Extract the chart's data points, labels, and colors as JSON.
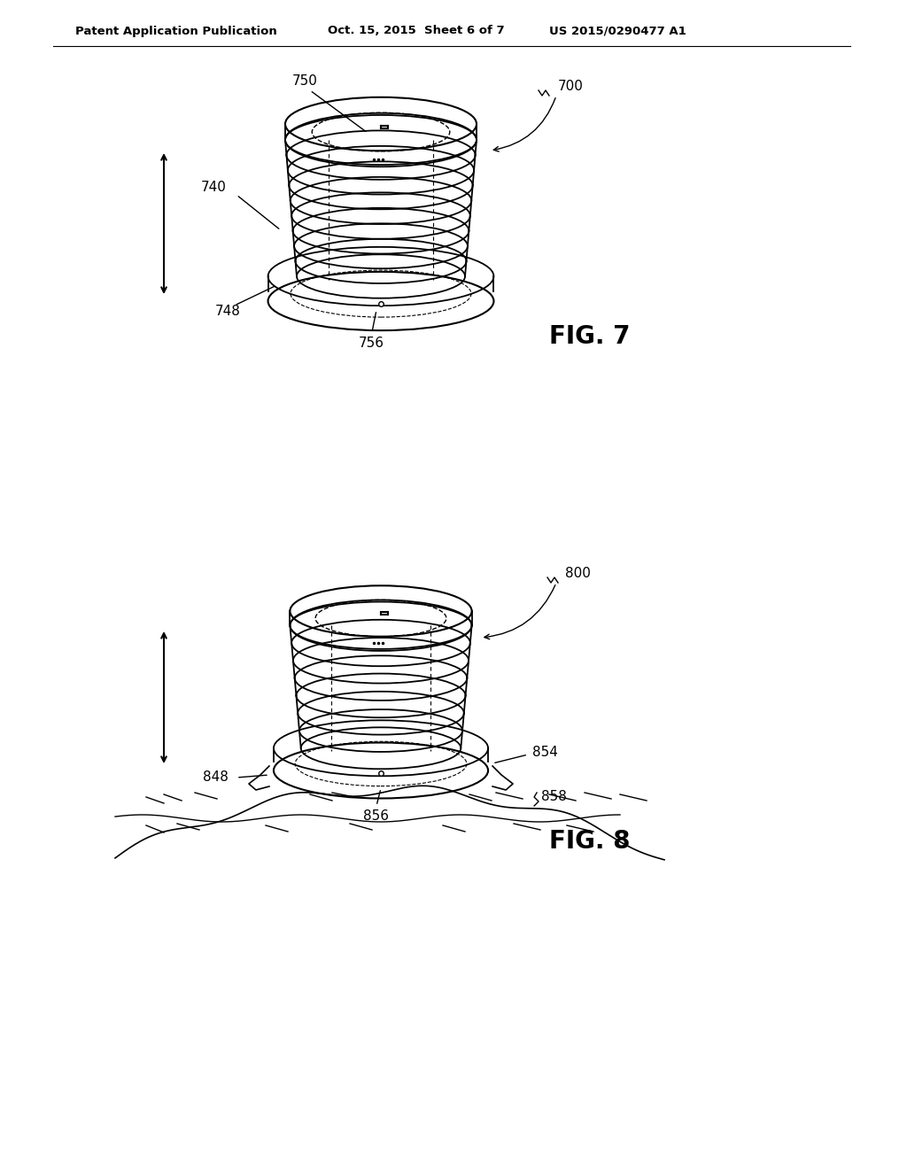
{
  "bg_color": "#ffffff",
  "line_color": "#000000",
  "header_left": "Patent Application Publication",
  "header_mid": "Oct. 15, 2015  Sheet 6 of 7",
  "header_right": "US 2015/0290477 A1",
  "fig7_label": "FIG. 7",
  "fig8_label": "FIG. 8",
  "fig7_ref700": "700",
  "fig7_ref750": "750",
  "fig7_ref740": "740",
  "fig7_ref748": "748",
  "fig7_ref756": "756",
  "fig8_ref800": "800",
  "fig8_ref854": "854",
  "fig8_ref848": "848",
  "fig8_ref856": "856",
  "fig8_ref858": "858"
}
